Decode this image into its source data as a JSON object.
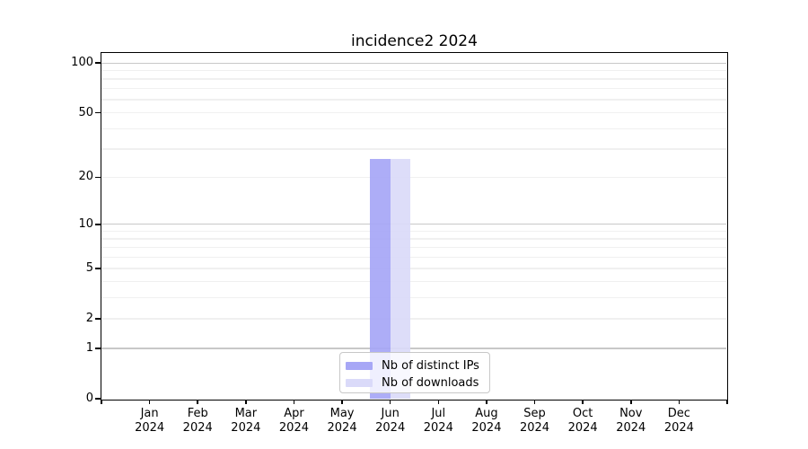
{
  "chart_data": {
    "type": "bar",
    "title": "incidence2 2024",
    "categories": [
      "Jan",
      "Feb",
      "Mar",
      "Apr",
      "May",
      "Jun",
      "Jul",
      "Aug",
      "Sep",
      "Oct",
      "Nov",
      "Dec"
    ],
    "x_year": "2024",
    "series": [
      {
        "name": "Nb of distinct IPs",
        "color": "#a7a7f6",
        "values": [
          0,
          0,
          0,
          0,
          0,
          26,
          0,
          0,
          0,
          0,
          0,
          0
        ]
      },
      {
        "name": "Nb of downloads",
        "color": "#dadaf9",
        "values": [
          0,
          0,
          0,
          0,
          0,
          26,
          0,
          0,
          0,
          0,
          0,
          0
        ]
      }
    ],
    "yscale": "log1p",
    "ylim": [
      0,
      115
    ],
    "y_ticks": [
      0,
      1,
      2,
      5,
      10,
      20,
      50,
      100
    ],
    "grid": {
      "major": [
        1,
        10,
        100
      ],
      "minor": [
        2,
        3,
        4,
        5,
        6,
        7,
        8,
        9,
        20,
        30,
        40,
        50,
        60,
        70,
        80,
        90
      ]
    },
    "colors": {
      "grid_major": "#c8c8c8",
      "grid_minor": "#f0f0f0",
      "spine": "#000000"
    },
    "legend_position": "lower center",
    "grid_on": true
  }
}
